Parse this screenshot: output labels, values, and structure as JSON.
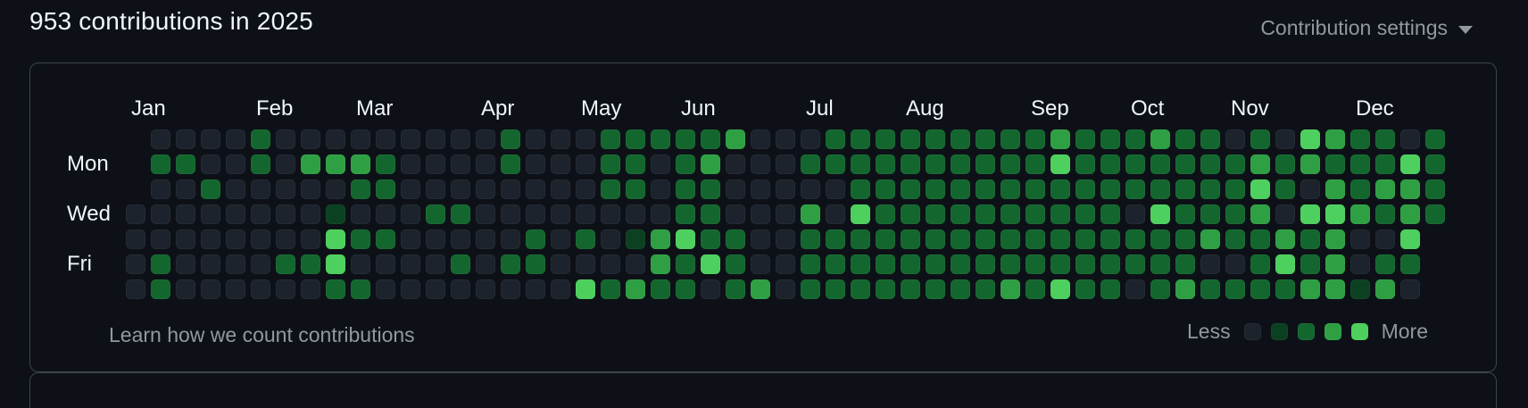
{
  "header": {
    "title": "953 contributions in 2025",
    "settings_label": "Contribution settings"
  },
  "calendar": {
    "year": "2025",
    "months": [
      {
        "label": "Jan",
        "col": 0
      },
      {
        "label": "Feb",
        "col": 5
      },
      {
        "label": "Mar",
        "col": 9
      },
      {
        "label": "Apr",
        "col": 14
      },
      {
        "label": "May",
        "col": 18
      },
      {
        "label": "Jun",
        "col": 22
      },
      {
        "label": "Jul",
        "col": 27
      },
      {
        "label": "Aug",
        "col": 31
      },
      {
        "label": "Sep",
        "col": 36
      },
      {
        "label": "Oct",
        "col": 40
      },
      {
        "label": "Nov",
        "col": 44
      },
      {
        "label": "Dec",
        "col": 49
      }
    ],
    "day_labels": [
      {
        "label": "Mon",
        "row": 1
      },
      {
        "label": "Wed",
        "row": 3
      },
      {
        "label": "Fri",
        "row": 5
      }
    ],
    "palette": [
      "#1c232d",
      "#0b4121",
      "#13672e",
      "#2ea043",
      "#4dd05e"
    ],
    "weeks": [
      [
        null,
        null,
        null,
        0,
        0,
        0,
        0
      ],
      [
        0,
        2,
        0,
        0,
        0,
        2,
        2
      ],
      [
        0,
        2,
        0,
        0,
        0,
        0,
        0
      ],
      [
        0,
        0,
        2,
        0,
        0,
        0,
        0
      ],
      [
        0,
        0,
        0,
        0,
        0,
        0,
        0
      ],
      [
        2,
        2,
        0,
        0,
        0,
        0,
        0
      ],
      [
        0,
        0,
        0,
        0,
        0,
        2,
        0
      ],
      [
        0,
        3,
        0,
        0,
        0,
        2,
        0
      ],
      [
        0,
        3,
        0,
        1,
        4,
        4,
        2
      ],
      [
        0,
        3,
        2,
        0,
        2,
        0,
        2
      ],
      [
        0,
        2,
        2,
        0,
        2,
        0,
        0
      ],
      [
        0,
        0,
        0,
        0,
        0,
        0,
        0
      ],
      [
        0,
        0,
        0,
        2,
        0,
        0,
        0
      ],
      [
        0,
        0,
        0,
        2,
        0,
        2,
        0
      ],
      [
        0,
        0,
        0,
        0,
        0,
        0,
        0
      ],
      [
        2,
        2,
        0,
        0,
        0,
        2,
        0
      ],
      [
        0,
        0,
        0,
        0,
        2,
        2,
        0
      ],
      [
        0,
        0,
        0,
        0,
        0,
        0,
        0
      ],
      [
        0,
        0,
        0,
        0,
        2,
        0,
        4
      ],
      [
        2,
        2,
        2,
        0,
        0,
        0,
        2
      ],
      [
        2,
        2,
        2,
        0,
        1,
        0,
        3
      ],
      [
        2,
        0,
        0,
        0,
        3,
        3,
        2
      ],
      [
        2,
        2,
        2,
        2,
        4,
        2,
        2
      ],
      [
        2,
        3,
        2,
        2,
        2,
        4,
        0
      ],
      [
        3,
        0,
        0,
        0,
        2,
        2,
        2
      ],
      [
        0,
        0,
        0,
        0,
        0,
        0,
        3
      ],
      [
        0,
        0,
        0,
        0,
        0,
        0,
        0
      ],
      [
        0,
        2,
        0,
        3,
        2,
        2,
        2
      ],
      [
        2,
        2,
        0,
        0,
        2,
        2,
        2
      ],
      [
        2,
        2,
        2,
        4,
        2,
        2,
        2
      ],
      [
        2,
        2,
        2,
        2,
        2,
        2,
        2
      ],
      [
        2,
        2,
        2,
        2,
        2,
        2,
        2
      ],
      [
        2,
        2,
        2,
        2,
        2,
        2,
        2
      ],
      [
        2,
        2,
        2,
        2,
        2,
        2,
        2
      ],
      [
        2,
        2,
        2,
        2,
        2,
        2,
        2
      ],
      [
        2,
        2,
        2,
        2,
        2,
        2,
        3
      ],
      [
        2,
        2,
        2,
        2,
        2,
        2,
        2
      ],
      [
        3,
        4,
        2,
        2,
        2,
        2,
        4
      ],
      [
        2,
        2,
        2,
        2,
        2,
        2,
        2
      ],
      [
        2,
        2,
        2,
        2,
        2,
        2,
        2
      ],
      [
        2,
        2,
        2,
        0,
        2,
        2,
        0
      ],
      [
        3,
        2,
        2,
        4,
        2,
        2,
        2
      ],
      [
        2,
        2,
        2,
        2,
        2,
        2,
        3
      ],
      [
        2,
        2,
        2,
        2,
        3,
        0,
        2
      ],
      [
        0,
        2,
        2,
        2,
        2,
        0,
        2
      ],
      [
        2,
        3,
        4,
        3,
        2,
        2,
        2
      ],
      [
        0,
        2,
        2,
        0,
        3,
        4,
        2
      ],
      [
        4,
        3,
        0,
        4,
        2,
        2,
        3
      ],
      [
        3,
        2,
        3,
        4,
        3,
        3,
        3
      ],
      [
        2,
        2,
        2,
        3,
        0,
        0,
        1
      ],
      [
        2,
        2,
        3,
        2,
        0,
        2,
        3
      ],
      [
        0,
        4,
        3,
        3,
        4,
        2,
        0
      ],
      [
        2,
        2,
        2,
        2,
        null,
        null,
        null
      ]
    ]
  },
  "footer": {
    "learn_link": "Learn how we count contributions",
    "less_label": "Less",
    "more_label": "More"
  }
}
